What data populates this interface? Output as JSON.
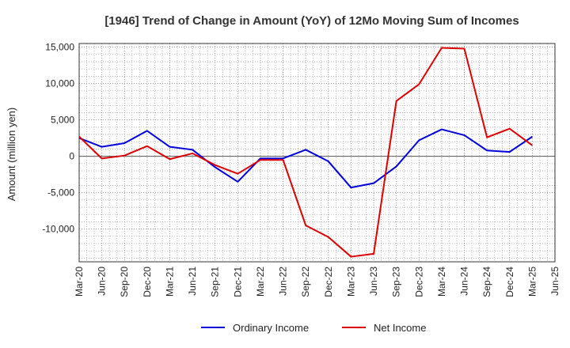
{
  "chart_data": {
    "type": "line",
    "title": "[1946]  Trend of Change in Amount (YoY) of 12Mo Moving Sum of Incomes",
    "xlabel": "",
    "ylabel": "Amount (million yen)",
    "ylim": [
      -14500,
      15500
    ],
    "yticks": [
      15000,
      10000,
      5000,
      0,
      -5000,
      -10000
    ],
    "ytick_labels": [
      "15,000",
      "10,000",
      "5,000",
      "0",
      "-5,000",
      "-10,000"
    ],
    "categories": [
      "Mar-20",
      "Jun-20",
      "Sep-20",
      "Dec-20",
      "Mar-21",
      "Jun-21",
      "Sep-21",
      "Dec-21",
      "Mar-22",
      "Jun-22",
      "Sep-22",
      "Dec-22",
      "Mar-23",
      "Jun-23",
      "Sep-23",
      "Dec-23",
      "Mar-24",
      "Jun-24",
      "Sep-24",
      "Dec-24",
      "Mar-25",
      "Jun-25"
    ],
    "grid": true,
    "legend_position": "bottom",
    "series": [
      {
        "name": "Ordinary Income",
        "color": "#0000dd",
        "values": [
          2500,
          1300,
          1800,
          3500,
          1300,
          900,
          -1500,
          -3500,
          -300,
          -300,
          900,
          -700,
          -4300,
          -3700,
          -1400,
          2200,
          3700,
          2900,
          800,
          600,
          2700,
          null
        ]
      },
      {
        "name": "Net Income",
        "color": "#dd0000",
        "values": [
          2700,
          -300,
          100,
          1400,
          -400,
          400,
          -1200,
          -2400,
          -500,
          -500,
          -9500,
          -11100,
          -13800,
          -13400,
          7600,
          9900,
          14900,
          14800,
          2600,
          3800,
          1500,
          null
        ]
      }
    ]
  }
}
